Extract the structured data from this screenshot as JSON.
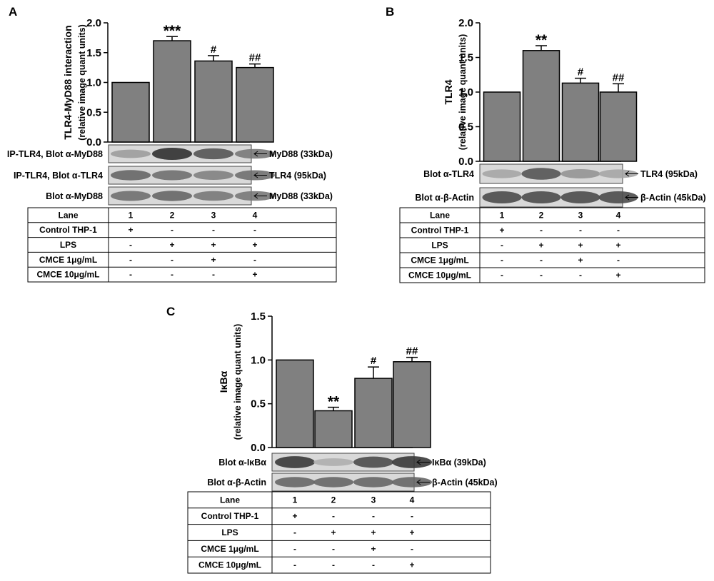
{
  "chart_data": [
    {
      "panel": "A",
      "type": "bar",
      "ylabel": "TLR4-MyD88 interaction",
      "ylabel2": "(relative image quant units)",
      "ylim": [
        0,
        2.0
      ],
      "yticks": [
        "0.0",
        "0.5",
        "1.0",
        "1.5",
        "2.0"
      ],
      "categories": [
        "1",
        "2",
        "3",
        "4"
      ],
      "values": [
        1.0,
        1.7,
        1.36,
        1.25
      ],
      "errors": [
        0,
        0.07,
        0.09,
        0.06
      ],
      "annotations": [
        "",
        "***",
        "#",
        "##"
      ],
      "blots": [
        {
          "label": "IP-TLR4, Blot α-MyD88",
          "marker": "MyD88 (33kDa)",
          "intensity": [
            0.3,
            0.9,
            0.7,
            0.5
          ]
        },
        {
          "label": "IP-TLR4, Blot α-TLR4",
          "marker": "TLR4 (95kDa)",
          "intensity": [
            0.6,
            0.55,
            0.45,
            0.55
          ]
        },
        {
          "label": "Blot α-MyD88",
          "marker": "MyD88 (33kDa)",
          "intensity": [
            0.55,
            0.6,
            0.5,
            0.5
          ]
        }
      ],
      "table": {
        "header": [
          "Lane",
          "1",
          "2",
          "3",
          "4"
        ],
        "rows": [
          [
            "Control THP-1",
            "+",
            "-",
            "-",
            "-"
          ],
          [
            "LPS",
            "-",
            "+",
            "+",
            "+"
          ],
          [
            "CMCE 1μg/mL",
            "-",
            "-",
            "+",
            "-"
          ],
          [
            "CMCE 10μg/mL",
            "-",
            "-",
            "-",
            "+"
          ]
        ]
      }
    },
    {
      "panel": "B",
      "type": "bar",
      "ylabel": "TLR4",
      "ylabel2": "(relative image quant units)",
      "ylim": [
        0,
        2.0
      ],
      "yticks": [
        "0.0",
        "0.5",
        "1.0",
        "1.5",
        "2.0"
      ],
      "categories": [
        "1",
        "2",
        "3",
        "4"
      ],
      "values": [
        1.0,
        1.6,
        1.13,
        1.0
      ],
      "errors": [
        0,
        0.07,
        0.07,
        0.12
      ],
      "annotations": [
        "",
        "**",
        "#",
        "##"
      ],
      "blots": [
        {
          "label": "Blot α-TLR4",
          "marker": "TLR4 (95kDa)",
          "intensity": [
            0.25,
            0.7,
            0.35,
            0.25
          ]
        },
        {
          "label": "Blot α-β-Actin",
          "marker": "β-Actin (45kDa)",
          "intensity": [
            0.75,
            0.75,
            0.75,
            0.75
          ]
        }
      ],
      "table": {
        "header": [
          "Lane",
          "1",
          "2",
          "3",
          "4"
        ],
        "rows": [
          [
            "Control THP-1",
            "+",
            "-",
            "-",
            "-"
          ],
          [
            "LPS",
            "-",
            "+",
            "+",
            "+"
          ],
          [
            "CMCE 1μg/mL",
            "-",
            "-",
            "+",
            "-"
          ],
          [
            "CMCE 10μg/mL",
            "-",
            "-",
            "-",
            "+"
          ]
        ]
      }
    },
    {
      "panel": "C",
      "type": "bar",
      "ylabel": "IκBα",
      "ylabel2": "(relative image quant units)",
      "ylim": [
        0,
        1.5
      ],
      "yticks": [
        "0.0",
        "0.5",
        "1.0",
        "1.5"
      ],
      "categories": [
        "1",
        "2",
        "3",
        "4"
      ],
      "values": [
        1.0,
        0.42,
        0.79,
        0.98
      ],
      "errors": [
        0,
        0.04,
        0.13,
        0.05
      ],
      "annotations": [
        "",
        "**",
        "#",
        "##"
      ],
      "blots": [
        {
          "label": "Blot α-IκBα",
          "marker": "IκBα (39kDa)",
          "intensity": [
            0.85,
            0.2,
            0.75,
            0.85
          ]
        },
        {
          "label": "Blot α-β-Actin",
          "marker": "β-Actin (45kDa)",
          "intensity": [
            0.6,
            0.6,
            0.6,
            0.6
          ]
        }
      ],
      "table": {
        "header": [
          "Lane",
          "1",
          "2",
          "3",
          "4"
        ],
        "rows": [
          [
            "Control THP-1",
            "+",
            "-",
            "-",
            "-"
          ],
          [
            "LPS",
            "-",
            "+",
            "+",
            "+"
          ],
          [
            "CMCE 1μg/mL",
            "-",
            "-",
            "+",
            "-"
          ],
          [
            "CMCE 10μg/mL",
            "-",
            "-",
            "-",
            "+"
          ]
        ]
      }
    }
  ]
}
